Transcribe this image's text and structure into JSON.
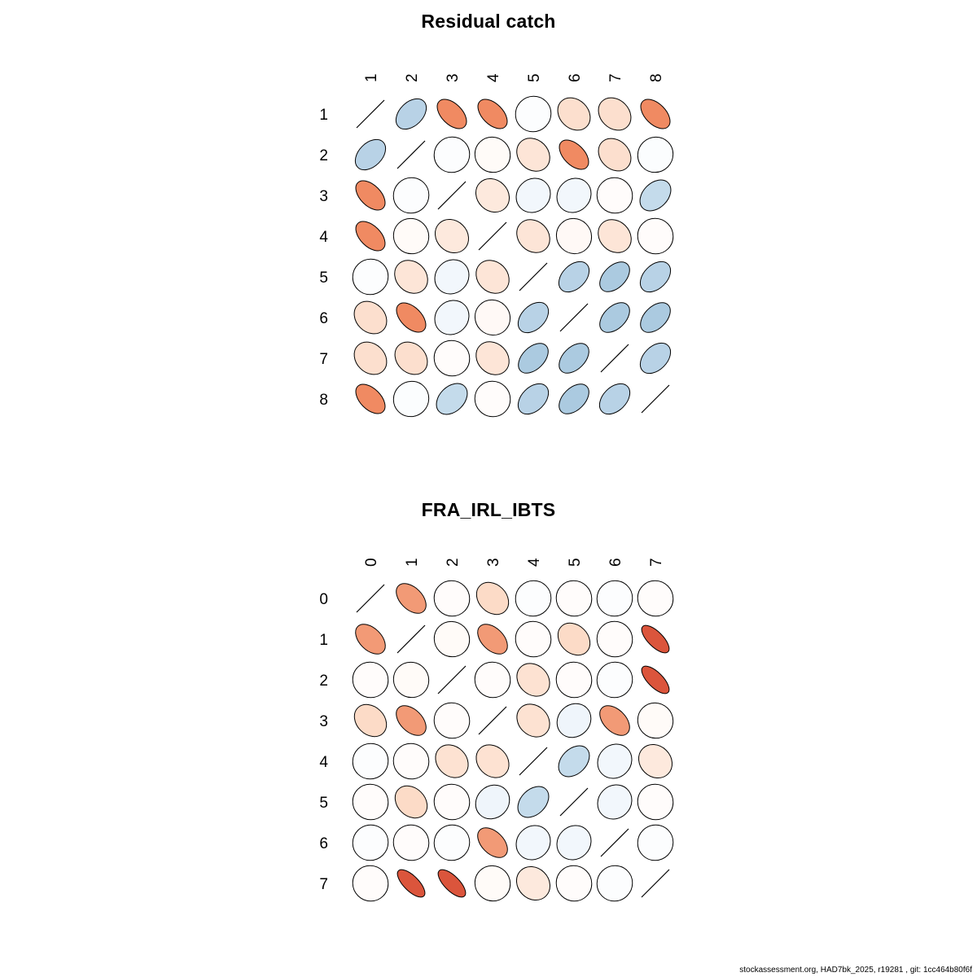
{
  "footer": "stockassessment.org, HAD7bk_2025, r19281 , git: 1cc464b80f6f",
  "palette_stops": [
    {
      "value": -1.0,
      "color": "#67001F"
    },
    {
      "value": -0.75,
      "color": "#D64832"
    },
    {
      "value": -0.5,
      "color": "#F08A62"
    },
    {
      "value": -0.25,
      "color": "#FCDBC7"
    },
    {
      "value": 0.0,
      "color": "#FFFFFF"
    },
    {
      "value": 0.25,
      "color": "#DEEBF7"
    },
    {
      "value": 0.5,
      "color": "#9EC2DA"
    },
    {
      "value": 0.75,
      "color": "#4393C3"
    },
    {
      "value": 1.0,
      "color": "#053061"
    }
  ],
  "chart_data": [
    {
      "type": "heatmap",
      "variant": "correlation-ellipse-matrix",
      "title": "Residual catch",
      "legend": "off",
      "grid": "off",
      "col_labels": [
        "1",
        "2",
        "3",
        "4",
        "5",
        "6",
        "7",
        "8"
      ],
      "row_labels": [
        "1",
        "2",
        "3",
        "4",
        "5",
        "6",
        "7",
        "8"
      ],
      "matrix": [
        [
          1.0,
          0.4,
          -0.5,
          -0.5,
          0.02,
          -0.22,
          -0.22,
          -0.5
        ],
        [
          0.4,
          1.0,
          0.02,
          -0.03,
          -0.18,
          -0.5,
          -0.22,
          0.03
        ],
        [
          -0.5,
          0.02,
          1.0,
          -0.15,
          0.1,
          0.1,
          -0.02,
          0.35
        ],
        [
          -0.5,
          -0.03,
          -0.15,
          1.0,
          -0.18,
          -0.04,
          -0.18,
          -0.02
        ],
        [
          0.02,
          -0.18,
          0.1,
          -0.18,
          1.0,
          0.4,
          0.45,
          0.4
        ],
        [
          -0.22,
          -0.5,
          0.1,
          -0.04,
          0.4,
          1.0,
          0.45,
          0.45
        ],
        [
          -0.22,
          -0.22,
          -0.02,
          -0.18,
          0.45,
          0.45,
          1.0,
          0.4
        ],
        [
          -0.5,
          0.03,
          0.35,
          -0.02,
          0.4,
          0.45,
          0.4,
          1.0
        ]
      ]
    },
    {
      "type": "heatmap",
      "variant": "correlation-ellipse-matrix",
      "title": "FRA_IRL_IBTS",
      "legend": "off",
      "grid": "off",
      "col_labels": [
        "0",
        "1",
        "2",
        "3",
        "4",
        "5",
        "6",
        "7"
      ],
      "row_labels": [
        "0",
        "1",
        "2",
        "3",
        "4",
        "5",
        "6",
        "7"
      ],
      "matrix": [
        [
          1.0,
          -0.45,
          -0.02,
          -0.25,
          0.02,
          -0.02,
          0.02,
          -0.02
        ],
        [
          -0.45,
          1.0,
          -0.03,
          -0.45,
          -0.02,
          -0.25,
          -0.02,
          -0.7
        ],
        [
          -0.02,
          -0.03,
          1.0,
          -0.02,
          -0.2,
          -0.02,
          0.02,
          -0.7
        ],
        [
          -0.25,
          -0.45,
          -0.02,
          1.0,
          -0.2,
          0.12,
          -0.45,
          -0.03
        ],
        [
          0.02,
          -0.02,
          -0.2,
          -0.2,
          1.0,
          0.35,
          0.1,
          -0.15
        ],
        [
          -0.02,
          -0.25,
          -0.02,
          0.12,
          0.35,
          1.0,
          0.1,
          -0.02
        ],
        [
          0.02,
          -0.02,
          0.02,
          -0.45,
          0.1,
          0.1,
          1.0,
          0.02
        ],
        [
          -0.02,
          -0.7,
          -0.7,
          -0.03,
          -0.15,
          -0.02,
          0.02,
          1.0
        ]
      ]
    }
  ]
}
